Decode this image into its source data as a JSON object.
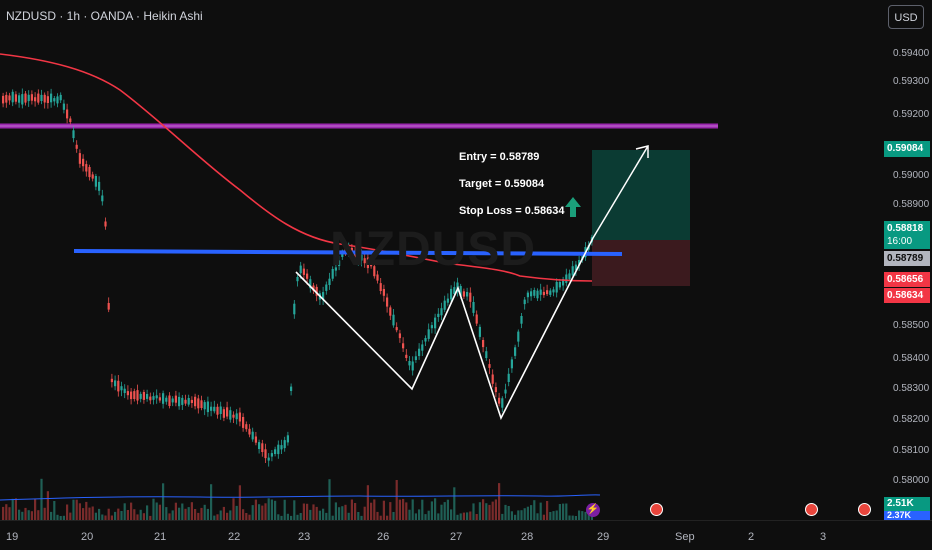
{
  "header": {
    "symbol_line": "NZDUSD · 1h · OANDA · Heikin Ashi",
    "currency_button": "USD"
  },
  "watermark": "NZDUSD",
  "price_axis": [
    "0.59400",
    "0.59300",
    "0.59200",
    "0.59000",
    "0.58900",
    "0.58500",
    "0.58400",
    "0.58300",
    "0.58200",
    "0.58100",
    "0.58000"
  ],
  "price_badges": {
    "target": "0.59084",
    "current": "0.58818",
    "countdown": "16:00",
    "entry": "0.58789",
    "ma": "0.58656",
    "stop": "0.58634",
    "vol1": "2.51K",
    "vol2": "2.37K"
  },
  "time_axis": [
    "19",
    "20",
    "21",
    "22",
    "23",
    "26",
    "27",
    "28",
    "29",
    "Sep",
    "2",
    "3"
  ],
  "annotations": {
    "entry": "Entry = 0.58789",
    "target": "Target = 0.59084",
    "stop": "Stop Loss = 0.58634"
  },
  "colors": {
    "up": "#26a69a",
    "down": "#ef5350",
    "ma": "#f23645",
    "support": "#2962ff",
    "resistance": "#9c27b0",
    "target_zone": "#0b3b33",
    "stop_zone": "#3b1a1e"
  },
  "icons": [
    "lightning-icon",
    "us-flag-event-icon",
    "up-arrow-icon"
  ]
}
